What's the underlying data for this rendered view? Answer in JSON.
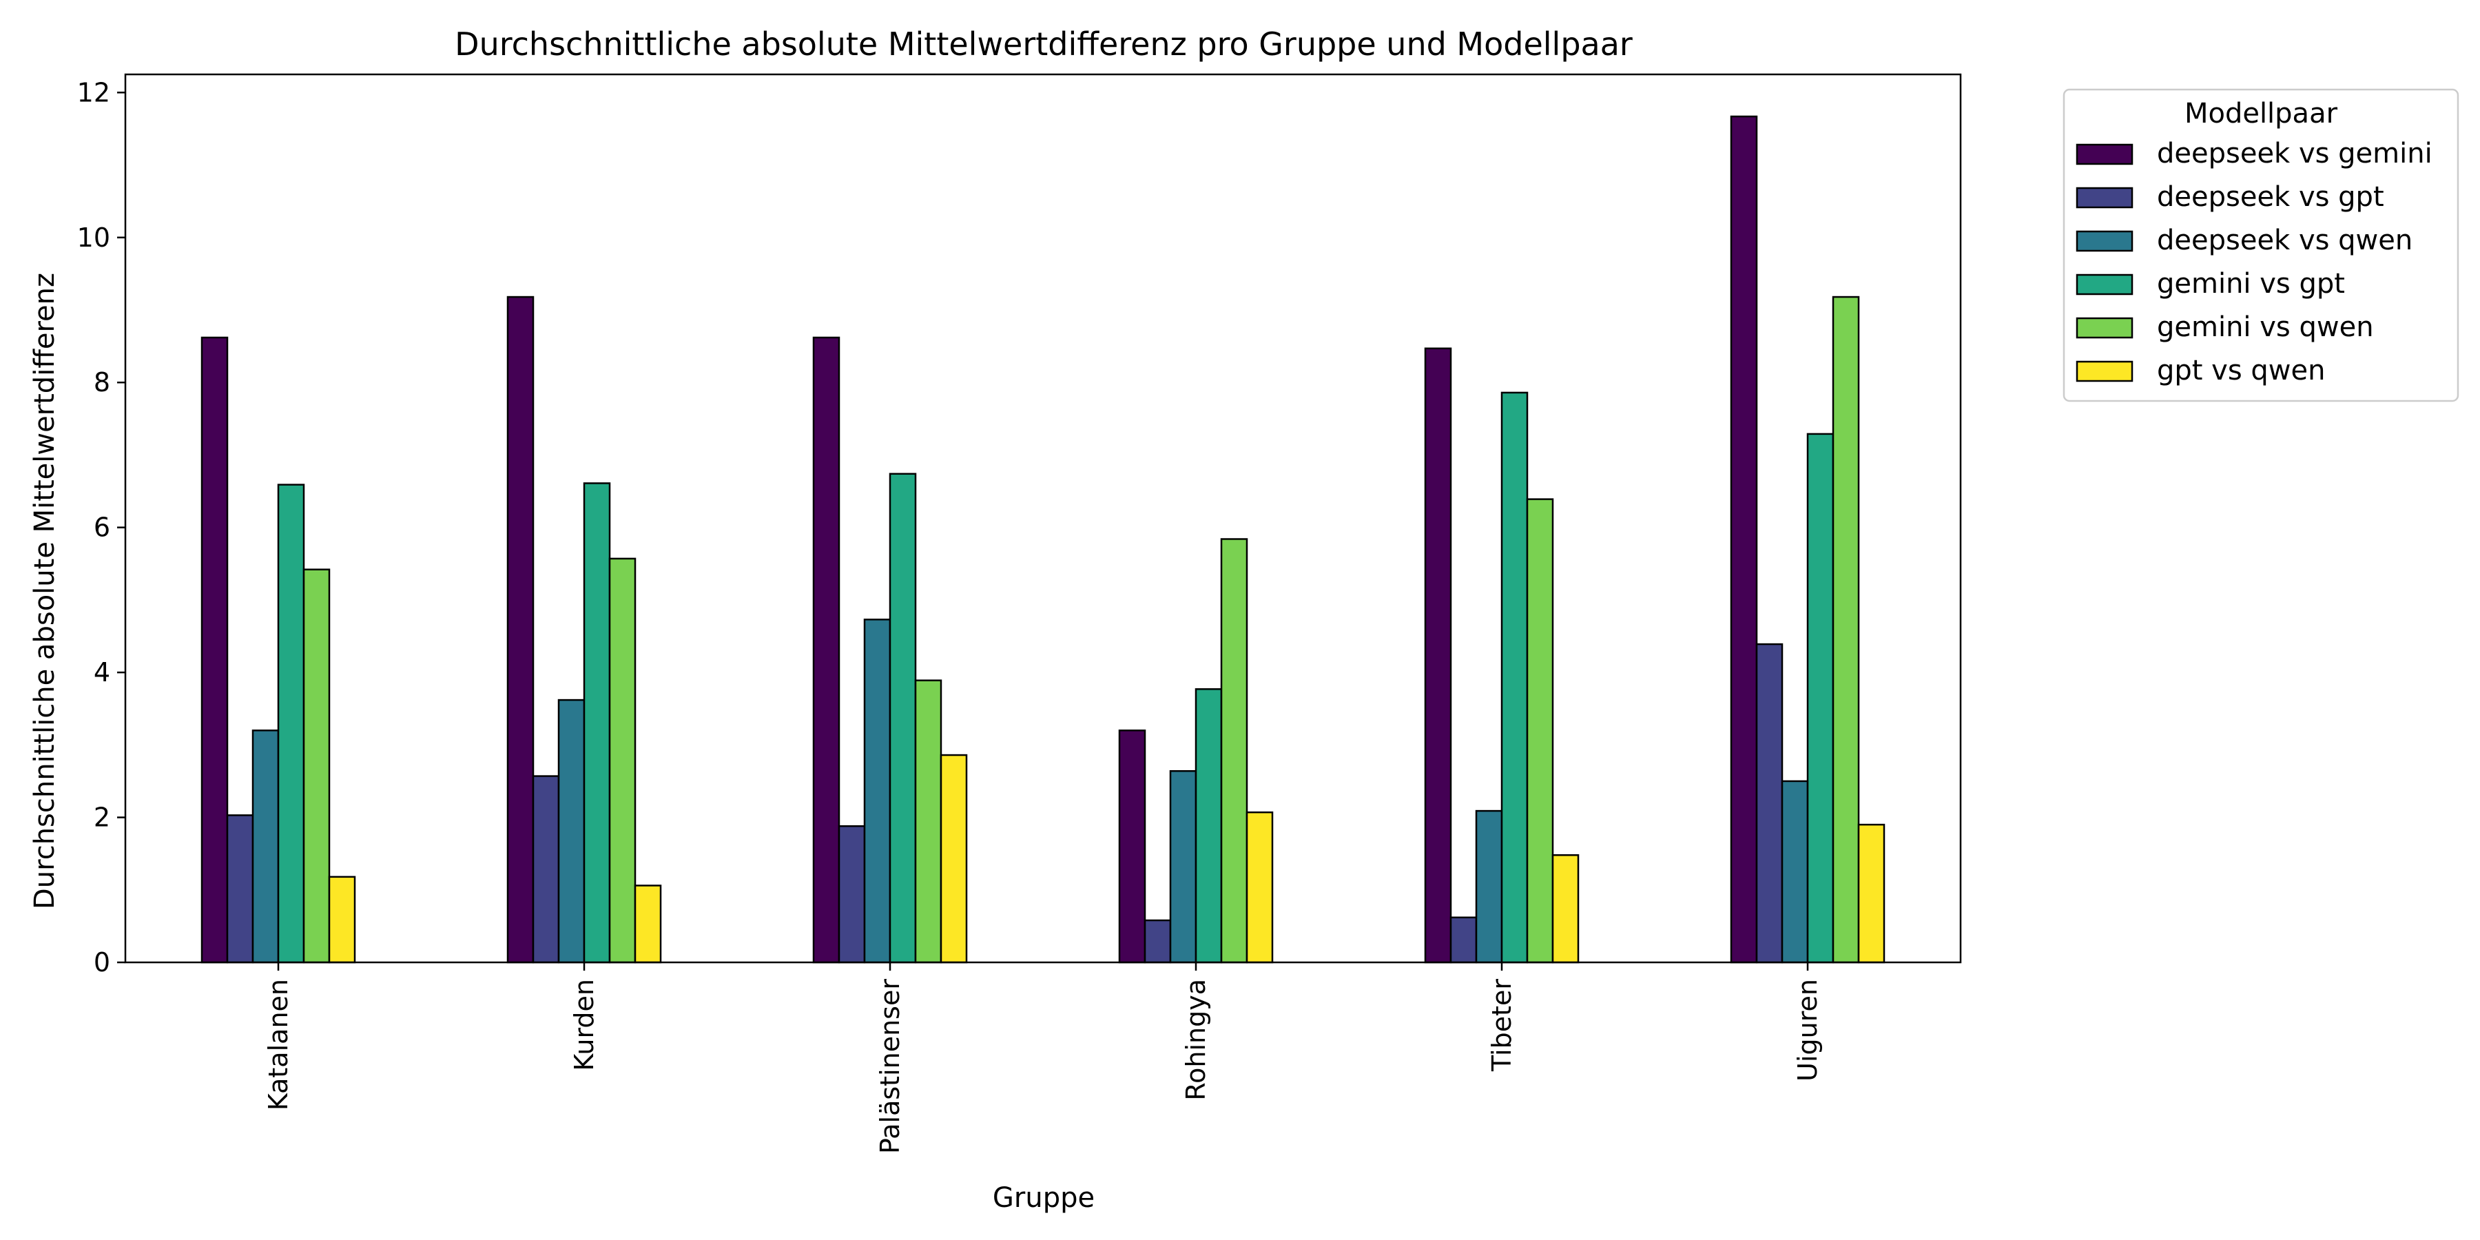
{
  "chart_data": {
    "type": "bar",
    "title": "Durchschnittliche absolute Mittelwertdifferenz pro Gruppe und Modellpaar",
    "xlabel": "Gruppe",
    "ylabel": "Durchschnittliche absolute Mittelwertdifferenz",
    "ylim": [
      0,
      12.25
    ],
    "yticks": [
      0,
      2,
      4,
      6,
      8,
      10,
      12
    ],
    "grid": false,
    "legend_title": "Modellpaar",
    "legend_position": "outside-top-right",
    "categories": [
      "Katalanen",
      "Kurden",
      "Palästinenser",
      "Rohingya",
      "Tibeter",
      "Uiguren"
    ],
    "series": [
      {
        "name": "deepseek vs gemini",
        "color": "#440154",
        "values": [
          8.62,
          9.18,
          8.62,
          3.2,
          8.47,
          11.67
        ]
      },
      {
        "name": "deepseek vs gpt",
        "color": "#414487",
        "values": [
          2.03,
          2.57,
          1.88,
          0.58,
          0.62,
          4.39
        ]
      },
      {
        "name": "deepseek vs qwen",
        "color": "#2a788e",
        "values": [
          3.2,
          3.62,
          4.73,
          2.64,
          2.09,
          2.5
        ]
      },
      {
        "name": "gemini vs gpt",
        "color": "#22a884",
        "values": [
          6.59,
          6.61,
          6.74,
          3.77,
          7.86,
          7.29
        ]
      },
      {
        "name": "gemini vs qwen",
        "color": "#7ad151",
        "values": [
          5.42,
          5.57,
          3.89,
          5.84,
          6.39,
          9.18
        ]
      },
      {
        "name": "gpt vs qwen",
        "color": "#fde725",
        "values": [
          1.18,
          1.06,
          2.86,
          2.07,
          1.48,
          1.9
        ]
      }
    ]
  }
}
